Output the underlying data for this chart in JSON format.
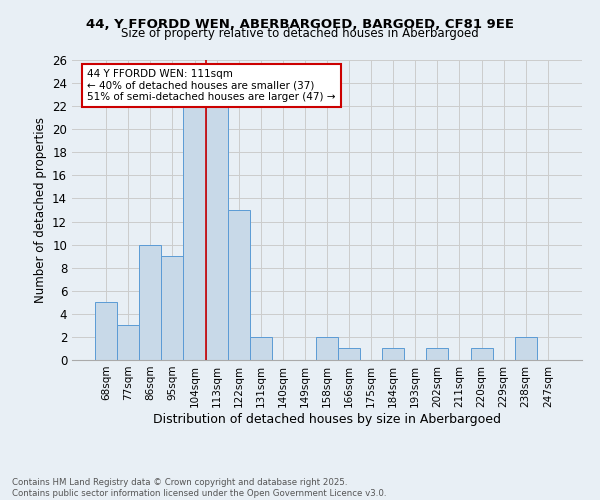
{
  "title_line1": "44, Y FFORDD WEN, ABERBARGOED, BARGOED, CF81 9EE",
  "title_line2": "Size of property relative to detached houses in Aberbargoed",
  "xlabel": "Distribution of detached houses by size in Aberbargoed",
  "ylabel": "Number of detached properties",
  "categories": [
    "68sqm",
    "77sqm",
    "86sqm",
    "95sqm",
    "104sqm",
    "113sqm",
    "122sqm",
    "131sqm",
    "140sqm",
    "149sqm",
    "158sqm",
    "166sqm",
    "175sqm",
    "184sqm",
    "193sqm",
    "202sqm",
    "211sqm",
    "220sqm",
    "229sqm",
    "238sqm",
    "247sqm"
  ],
  "values": [
    5,
    3,
    10,
    9,
    22,
    22,
    13,
    2,
    0,
    0,
    2,
    1,
    0,
    1,
    0,
    1,
    0,
    1,
    0,
    2,
    0
  ],
  "bar_color": "#c8d9e8",
  "bar_edge_color": "#5b9bd5",
  "grid_color": "#cccccc",
  "vline_x_index": 4.5,
  "vline_color": "#cc0000",
  "annotation_text": "44 Y FFORDD WEN: 111sqm\n← 40% of detached houses are smaller (37)\n51% of semi-detached houses are larger (47) →",
  "annotation_box_color": "#ffffff",
  "annotation_edge_color": "#cc0000",
  "ylim": [
    0,
    26
  ],
  "yticks": [
    0,
    2,
    4,
    6,
    8,
    10,
    12,
    14,
    16,
    18,
    20,
    22,
    24,
    26
  ],
  "footer_line1": "Contains HM Land Registry data © Crown copyright and database right 2025.",
  "footer_line2": "Contains public sector information licensed under the Open Government Licence v3.0.",
  "bg_color": "#e8eff5"
}
